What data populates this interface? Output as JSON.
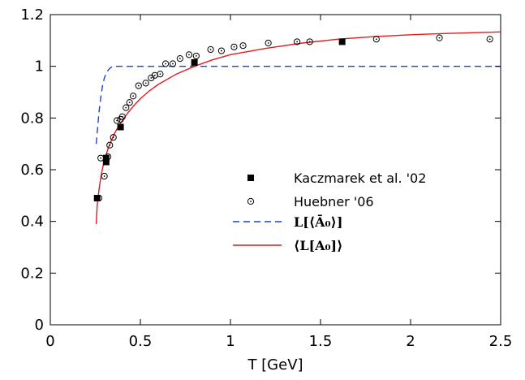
{
  "chart_data": {
    "type": "scatter",
    "title": "",
    "xlabel": "T [GeV]",
    "ylabel": "",
    "xlim": [
      0,
      2.5
    ],
    "ylim": [
      0,
      1.2
    ],
    "x_ticks": [
      "0",
      "0.5",
      "1",
      "1.5",
      "2",
      "2.5"
    ],
    "x_tick_values": [
      0,
      0.5,
      1,
      1.5,
      2,
      2.5
    ],
    "y_ticks": [
      "0",
      "0.2",
      "0.4",
      "0.6",
      "0.8",
      "1",
      "1.2"
    ],
    "y_tick_values": [
      0,
      0.2,
      0.4,
      0.6,
      0.8,
      1.0,
      1.2
    ],
    "grid": false,
    "legend_position": "middle-right",
    "series": [
      {
        "name": "Kaczmarek et al. '02",
        "kind": "points",
        "marker": "filled-square",
        "color": "#000000",
        "x": [
          0.26,
          0.31,
          0.31,
          0.39,
          0.8,
          1.62
        ],
        "y": [
          0.49,
          0.63,
          0.645,
          0.765,
          1.015,
          1.095
        ]
      },
      {
        "name": "Huebner '06",
        "kind": "points",
        "marker": "dotted-circle",
        "color": "#000000",
        "x": [
          0.27,
          0.28,
          0.3,
          0.32,
          0.33,
          0.35,
          0.37,
          0.39,
          0.4,
          0.42,
          0.44,
          0.46,
          0.49,
          0.53,
          0.56,
          0.58,
          0.61,
          0.64,
          0.68,
          0.72,
          0.77,
          0.81,
          0.89,
          0.95,
          1.02,
          1.07,
          1.21,
          1.37,
          1.44,
          1.81,
          2.16,
          2.44
        ],
        "y": [
          0.49,
          0.645,
          0.575,
          0.65,
          0.695,
          0.725,
          0.79,
          0.795,
          0.805,
          0.84,
          0.86,
          0.885,
          0.925,
          0.935,
          0.955,
          0.965,
          0.97,
          1.01,
          1.01,
          1.03,
          1.045,
          1.04,
          1.065,
          1.06,
          1.075,
          1.08,
          1.09,
          1.095,
          1.095,
          1.105,
          1.11,
          1.105
        ]
      },
      {
        "name": "L[⟨Ā₀⟩]",
        "kind": "line",
        "style": "dashed",
        "color": "#1f3fdc",
        "x": [
          0.255,
          0.26,
          0.265,
          0.27,
          0.28,
          0.29,
          0.3,
          0.31,
          0.32,
          0.33,
          0.34,
          0.35,
          0.36,
          0.38,
          0.4,
          0.5,
          1.0,
          1.5,
          2.0,
          2.5
        ],
        "y": [
          0.7,
          0.74,
          0.78,
          0.82,
          0.88,
          0.925,
          0.955,
          0.972,
          0.984,
          0.992,
          0.997,
          1.0,
          1.0,
          1.0,
          1.0,
          1.0,
          1.0,
          1.0,
          1.0,
          1.0
        ]
      },
      {
        "name": "⟨L[A₀]⟩",
        "kind": "line",
        "style": "solid",
        "color": "#e41a1c",
        "x": [
          0.255,
          0.26,
          0.27,
          0.28,
          0.29,
          0.3,
          0.32,
          0.34,
          0.36,
          0.38,
          0.4,
          0.43,
          0.46,
          0.5,
          0.55,
          0.6,
          0.7,
          0.8,
          0.9,
          1.0,
          1.2,
          1.4,
          1.6,
          1.8,
          2.0,
          2.2,
          2.5
        ],
        "y": [
          0.39,
          0.46,
          0.52,
          0.57,
          0.605,
          0.635,
          0.68,
          0.715,
          0.745,
          0.77,
          0.79,
          0.82,
          0.845,
          0.875,
          0.905,
          0.93,
          0.97,
          1.0,
          1.025,
          1.045,
          1.07,
          1.09,
          1.105,
          1.115,
          1.122,
          1.127,
          1.133
        ]
      }
    ]
  }
}
